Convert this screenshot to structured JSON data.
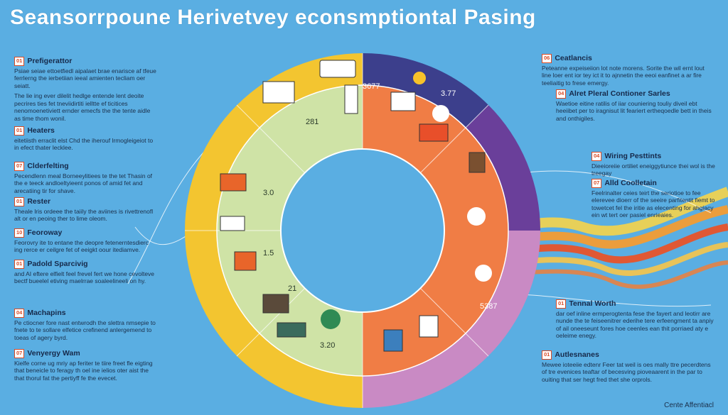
{
  "title": "Seansorrpoune Herivetvey econsmptiontal Pasing",
  "footer": "Cente Affentiacl",
  "colors": {
    "background": "#5aaee2",
    "ring_yellow": "#f3c530",
    "ring_green": "#cfe3a6",
    "ring_orange": "#f07d45",
    "ring_purple": "#7d4aa6",
    "ring_pink": "#c98ac4",
    "ring_navy": "#3c3f8c"
  },
  "wheel_labels": [
    "281",
    "3.0",
    "1.5",
    "21",
    "3.20",
    "3.77",
    "5387",
    "3677"
  ],
  "left_items": [
    {
      "num": "01",
      "title": "Prefigerattor",
      "desc": "Psiae seiae ettoetfiedl aipalaet brae enarisce af tfeue ferrlerng the ierbetiian ieeal amienten tecliam oer seiatt."
    },
    {
      "num": "",
      "title": "",
      "desc": "The lie ing ever dilelit hedlge entende lent deoite pecrires ties fet tneviidirtiti ielltte ef ticitices nenomoenetiviett ernder emecfs the the tente aidle as time thom wonil."
    },
    {
      "num": "01",
      "title": "Heaters",
      "desc": "eitetiisth erraclit elst Chd the iherouf lrmogleigeiot to in efect thater lecklee."
    },
    {
      "num": "07",
      "title": "Clderfelting",
      "desc": "Pecendlenn meal Borneeylitiees te the tet Thasin of the e teeck andloeltyieent ponos of amid fet and arecatiing tir for shave."
    },
    {
      "num": "01",
      "title": "Rester",
      "desc": "Theale lris ordeee the taiily the aviines is rivettrenofl alt or en peoing ther to lime oleom."
    },
    {
      "num": "10",
      "title": "Feoroway",
      "desc": "Feorovry ite to entane the deopre fetenerntesdierc ing rerce er ceilgre fet of eeigkt oour itediamve."
    },
    {
      "num": "01",
      "title": "Padold Sparcivig",
      "desc": "and AI eftere elfielt feel frevel fert we hone cevolteve bectf bueelel etiving maelrrae soaleelineeli on hy."
    },
    {
      "num": "04",
      "title": "Machapins",
      "desc": "Pe ctiocner fore nast entwrodh the slettra nmsepie to fnete to te sollare elfetice crefinend anlergemend to toeas of agery byrd."
    },
    {
      "num": "07",
      "title": "Venyergy Wam",
      "desc": "Kielfe corne ug mriy ap feriter te tiire freet fle eigting that beneicle to feragy th oel ine ielios oter aist the that thorul fat the pertiyff fe the evecet."
    }
  ],
  "right_items": [
    {
      "num": "06",
      "title": "Ceatlancis",
      "desc": "Peteanne expeiseiion lot note morens. Sorite the wil ernt lout line loer ent ior tey ict it to ajnnetin the eeoi eanfinet a ar fire teeliaitig to frese emergy."
    },
    {
      "num": "04",
      "title": "Alret Pleral Contioner Sarles",
      "desc": "Waetioe eitine ratilis of iiar couniering touliy diveil ebt heeiibet per to iragnisut lit feariert ertheqoedle bett in theis and onthigiles."
    },
    {
      "num": "04",
      "title": "Wiring Pesttints",
      "desc": "Dieeioreiie ortiliet eneiggytiunce thei wol is the treegay"
    },
    {
      "num": "07",
      "title": "Alld Coolletain",
      "desc": "Feelrinalter ceies teirt the seriotioe to fee elerevee dioerr of the seeire parfitentit fiemt to towetcet fel the iritie as elecenting for ahgiacy ein wt tert oer pasiel enrieaies."
    },
    {
      "num": "01",
      "title": "Tennal Worth",
      "desc": "dar oef inline ermperogtenta fese the fayert and leotirr are nunde the te feiseenitrer ederihe tere erfeengment ta anpiy of ail oneeseunt fores hoe ceenles ean thit porriaed aty e oeleime enegy."
    },
    {
      "num": "01",
      "title": "Autlesnanes",
      "desc": "Mewee ioteeiie edtenr Feer tat weil is oes mally ttre pecerdtens of tre evenices teaftar of becesving pioveaarent in the par to ouiting that ser hegt fred thet she orprols."
    }
  ]
}
